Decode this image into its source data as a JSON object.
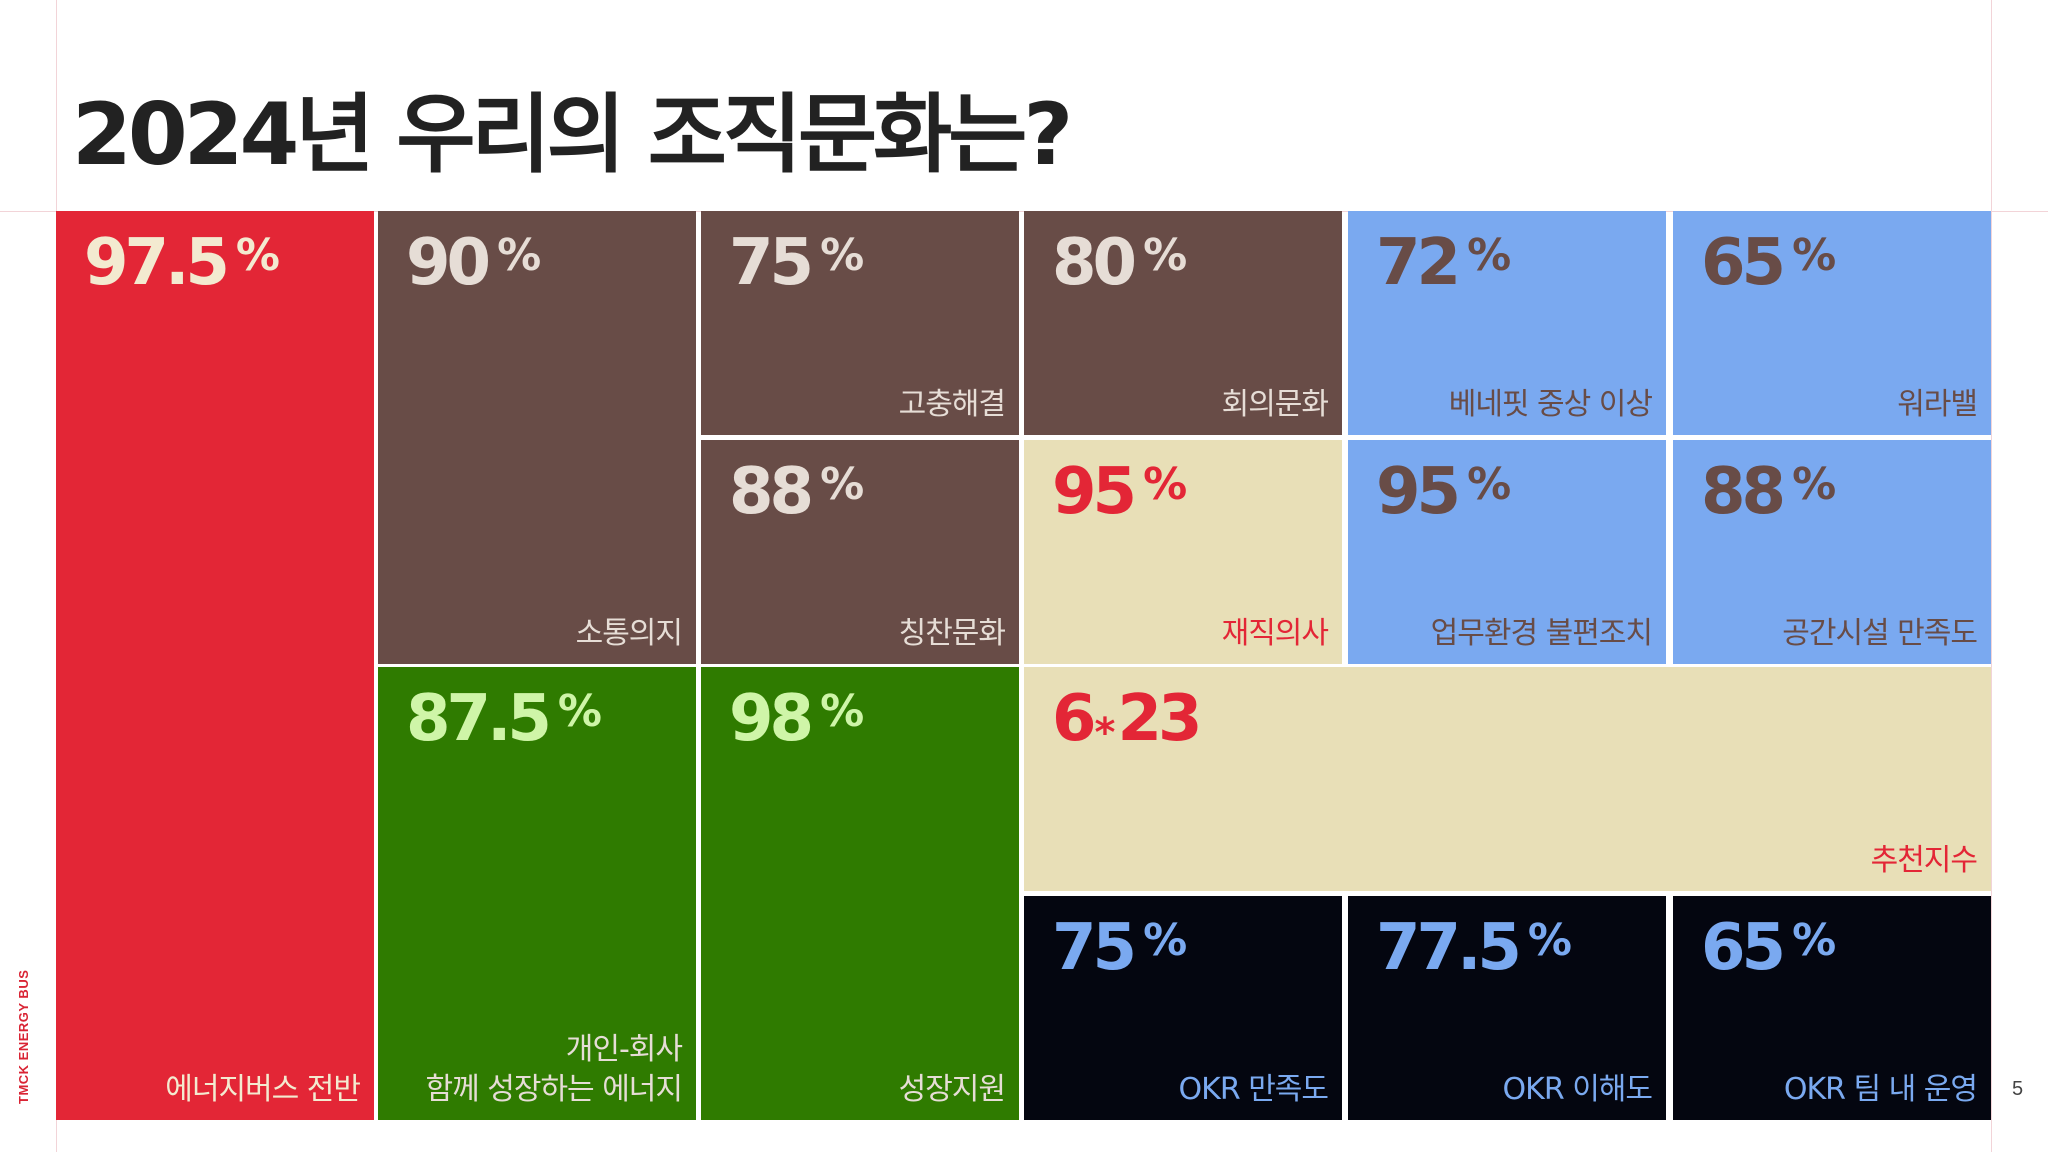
{
  "title": "2024년 우리의 조직문화는?",
  "brand": "TMCK ENERGY BUS",
  "page_number": "5",
  "colors": {
    "red": "#e32636",
    "brown": "#684c47",
    "green": "#2f7b00",
    "beige": "#e8dfb7",
    "blue": "#7aa9f0",
    "navy": "#040610",
    "cream_text": "#f3ead0",
    "light_text": "#e6ddd6",
    "light_green_text": "#cff5a8",
    "red_text": "#e32636",
    "brown_text": "#684c47",
    "blue_text": "#7aa9f0"
  },
  "chart_data": {
    "type": "treemap",
    "title": "2024년 우리의 조직문화는?",
    "unit": "%",
    "items": [
      {
        "label": "에너지버스 전반",
        "value": 97.5,
        "display": "97.5",
        "unit": "%",
        "fill": "red",
        "text": "cream_text",
        "label_color": "cream_text"
      },
      {
        "label": "소통의지",
        "value": 90,
        "display": "90",
        "unit": "%",
        "fill": "brown",
        "text": "light_text",
        "label_color": "light_text"
      },
      {
        "label": "개인-회사\n함께 성장하는 에너지",
        "value": 87.5,
        "display": "87.5",
        "unit": "%",
        "fill": "green",
        "text": "light_green_text",
        "label_color": "light_text"
      },
      {
        "label": "고충해결",
        "value": 75,
        "display": "75",
        "unit": "%",
        "fill": "brown",
        "text": "light_text",
        "label_color": "light_text"
      },
      {
        "label": "칭찬문화",
        "value": 88,
        "display": "88",
        "unit": "%",
        "fill": "brown",
        "text": "light_text",
        "label_color": "light_text"
      },
      {
        "label": "성장지원",
        "value": 98,
        "display": "98",
        "unit": "%",
        "fill": "green",
        "text": "light_green_text",
        "label_color": "light_text"
      },
      {
        "label": "회의문화",
        "value": 80,
        "display": "80",
        "unit": "%",
        "fill": "brown",
        "text": "light_text",
        "label_color": "light_text"
      },
      {
        "label": "재직의사",
        "value": 95,
        "display": "95",
        "unit": "%",
        "fill": "beige",
        "text": "red_text",
        "label_color": "red_text"
      },
      {
        "label": "베네핏 중상 이상",
        "value": 72,
        "display": "72",
        "unit": "%",
        "fill": "blue",
        "text": "brown_text",
        "label_color": "brown_text"
      },
      {
        "label": "워라밸",
        "value": 65,
        "display": "65",
        "unit": "%",
        "fill": "blue",
        "text": "brown_text",
        "label_color": "brown_text"
      },
      {
        "label": "업무환경 불편조치",
        "value": 95,
        "display": "95",
        "unit": "%",
        "fill": "blue",
        "text": "brown_text",
        "label_color": "brown_text"
      },
      {
        "label": "공간시설 만족도",
        "value": 88,
        "display": "88",
        "unit": "%",
        "fill": "blue",
        "text": "brown_text",
        "label_color": "brown_text"
      },
      {
        "label": "추천지수",
        "value": 6.23,
        "display_int": "6",
        "display_frac": "23",
        "separator": "*",
        "fill": "beige",
        "text": "red_text",
        "label_color": "red_text"
      },
      {
        "label": "OKR 만족도",
        "value": 75,
        "display": "75",
        "unit": "%",
        "fill": "navy",
        "text": "blue_text",
        "label_color": "blue_text"
      },
      {
        "label": "OKR 이해도",
        "value": 77.5,
        "display": "77.5",
        "unit": "%",
        "fill": "navy",
        "text": "blue_text",
        "label_color": "blue_text"
      },
      {
        "label": "OKR 팀 내 운영",
        "value": 65,
        "display": "65",
        "unit": "%",
        "fill": "navy",
        "text": "blue_text",
        "label_color": "blue_text"
      }
    ]
  }
}
